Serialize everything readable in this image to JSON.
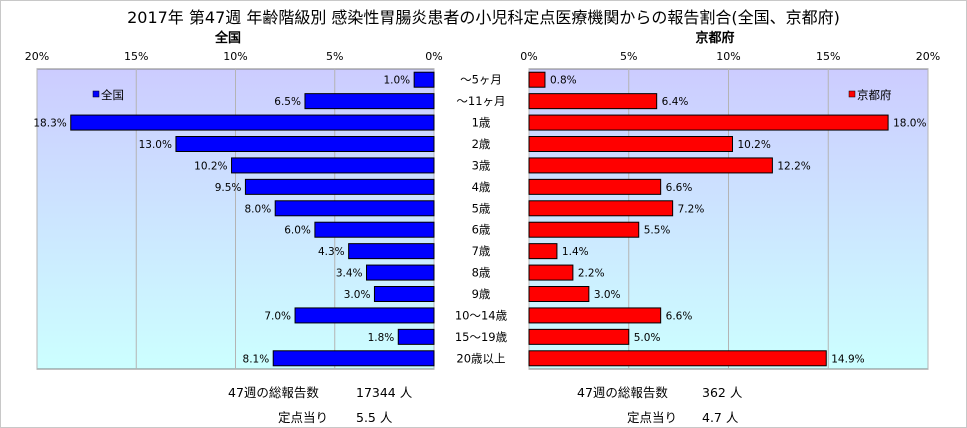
{
  "title": "2017年 第47週 年齢階級別 感染性胃腸炎患者の小児科定点医療機関からの報告割合(全国、京都府)",
  "colors": {
    "national_bar": "#0000ff",
    "kyoto_bar": "#ff0000",
    "plot_top": "#ccccff",
    "plot_bottom": "#ccffff"
  },
  "chart_data": [
    {
      "type": "bar",
      "orientation": "horizontal",
      "direction": "right-to-left",
      "title": "全国",
      "categories": [
        "～5ヶ月",
        "～11ヶ月",
        "1歳",
        "2歳",
        "3歳",
        "4歳",
        "5歳",
        "6歳",
        "7歳",
        "8歳",
        "9歳",
        "10～14歳",
        "15～19歳",
        "20歳以上"
      ],
      "series": [
        {
          "name": "全国",
          "values": [
            1.0,
            6.5,
            18.3,
            13.0,
            10.2,
            9.5,
            8.0,
            6.0,
            4.3,
            3.4,
            3.0,
            7.0,
            1.8,
            8.1
          ]
        }
      ],
      "value_labels": [
        "1.0%",
        "6.5%",
        "18.3%",
        "13.0%",
        "10.2%",
        "9.5%",
        "8.0%",
        "6.0%",
        "4.3%",
        "3.4%",
        "3.0%",
        "7.0%",
        "1.8%",
        "8.1%"
      ],
      "xlim": [
        0,
        20
      ],
      "xticks": [
        "20%",
        "15%",
        "10%",
        "5%",
        "0%"
      ],
      "grid": true,
      "legend_position": "top-left"
    },
    {
      "type": "bar",
      "orientation": "horizontal",
      "direction": "left-to-right",
      "title": "京都府",
      "categories": [
        "～5ヶ月",
        "～11ヶ月",
        "1歳",
        "2歳",
        "3歳",
        "4歳",
        "5歳",
        "6歳",
        "7歳",
        "8歳",
        "9歳",
        "10～14歳",
        "15～19歳",
        "20歳以上"
      ],
      "series": [
        {
          "name": "京都府",
          "values": [
            0.8,
            6.4,
            18.0,
            10.2,
            12.2,
            6.6,
            7.2,
            5.5,
            1.4,
            2.2,
            3.0,
            6.6,
            5.0,
            14.9
          ]
        }
      ],
      "value_labels": [
        "0.8%",
        "6.4%",
        "18.0%",
        "10.2%",
        "12.2%",
        "6.6%",
        "7.2%",
        "5.5%",
        "1.4%",
        "2.2%",
        "3.0%",
        "6.6%",
        "5.0%",
        "14.9%"
      ],
      "xlim": [
        0,
        20
      ],
      "xticks": [
        "0%",
        "5%",
        "10%",
        "15%",
        "20%"
      ],
      "grid": true,
      "legend_position": "top-right"
    }
  ],
  "footer": {
    "national": {
      "total_label": "47週の総報告数",
      "total_value": "17344 人",
      "per_site_label": "定点当り",
      "per_site_value": "5.5 人"
    },
    "kyoto": {
      "total_label": "47週の総報告数",
      "total_value": "362 人",
      "per_site_label": "定点当り",
      "per_site_value": "4.7 人"
    }
  }
}
